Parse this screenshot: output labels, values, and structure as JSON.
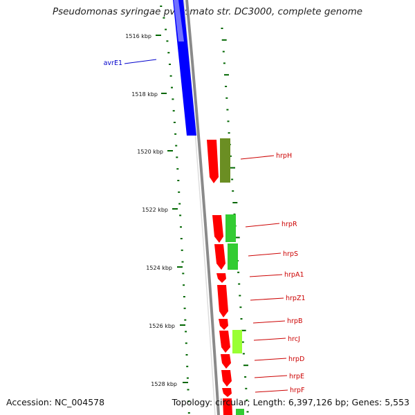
{
  "title": "Pseudomonas syringae pv. tomato str. DC3000, complete genome",
  "accession": "Accession: NC_004578",
  "stats": "Topology: circular; Length: 6,397,126 bp; Genes: 5,553",
  "colors": {
    "tick": "#006600",
    "backbone": "#888888",
    "blue_label": "#0000cc",
    "red_label": "#cc0000"
  },
  "tick_labels": [
    "1516 kbp",
    "1518 kbp",
    "1520 kbp",
    "1522 kbp",
    "1524 kbp",
    "1526 kbp",
    "1528 kbp"
  ],
  "gene_labels": [
    "avrE1",
    "hrpH",
    "hrpR",
    "hrpS",
    "hrpA1",
    "hrpZ1",
    "hrpB",
    "hrcJ",
    "hrpD",
    "hrpE",
    "hrpF"
  ]
}
